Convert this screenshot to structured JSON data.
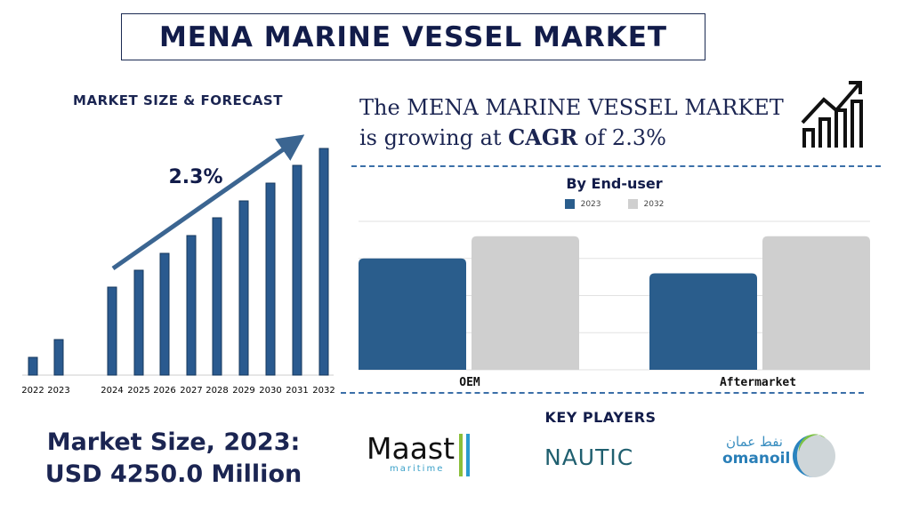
{
  "title": "MENA MARINE VESSEL MARKET",
  "left_subtitle": "MARKET SIZE & FORECAST",
  "headline": {
    "pre": "The MENA MARINE VESSEL MARKET is growing at ",
    "cagr_word": "CAGR",
    "mid": " of ",
    "rate": "2.3%"
  },
  "market_size": {
    "line1": "Market Size, 2023:",
    "line2": "USD 4250.0 Million"
  },
  "key_players_title": "KEY PLAYERS",
  "players": [
    {
      "name": "Maast",
      "sub": "maritime"
    },
    {
      "name": "NAUTIC"
    },
    {
      "name": "omanoil",
      "arabic": "نفط عمان"
    }
  ],
  "chart_data": [
    {
      "type": "bar",
      "title": "MARKET SIZE & FORECAST",
      "categories": [
        "2022",
        "2023",
        "2024",
        "2025",
        "2026",
        "2027",
        "2028",
        "2029",
        "2030",
        "2031",
        "2032"
      ],
      "values": [
        20,
        40,
        99,
        118,
        137,
        157,
        177,
        196,
        216,
        236,
        255
      ],
      "annotation": "2.3%",
      "color": "#2a5a8f",
      "grid": false
    },
    {
      "type": "bar",
      "title": "By End-user",
      "categories": [
        "OEM",
        "Aftermarket"
      ],
      "series": [
        {
          "name": "2023",
          "values": [
            3.0,
            2.6
          ],
          "color": "#2a5d8c"
        },
        {
          "name": "2032",
          "values": [
            3.6,
            3.6
          ],
          "color": "#cfcfcf"
        }
      ],
      "ylim": [
        0,
        4
      ],
      "grid": true,
      "legend": "top-center"
    }
  ]
}
